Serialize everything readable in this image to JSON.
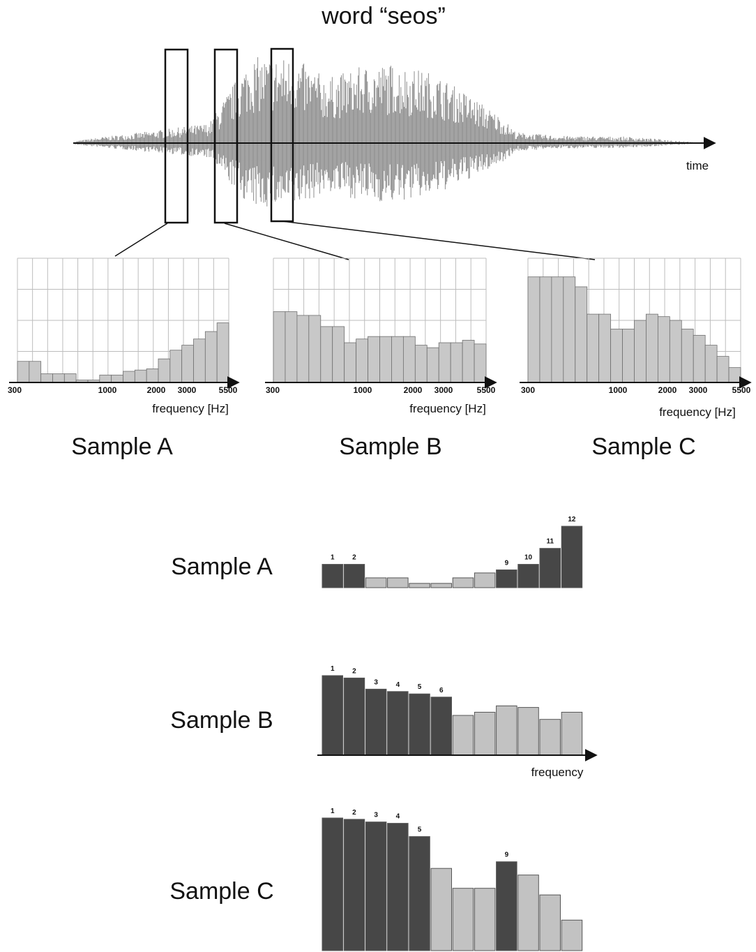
{
  "title": "word “seos”",
  "waveform": {
    "axis_label": "time"
  },
  "spectra": {
    "freq_ticks": [
      "300",
      "1000",
      "2000",
      "3000",
      "5500"
    ],
    "axis_label": "frequency [Hz]",
    "samples": [
      {
        "name": "Sample A",
        "levels": [
          0.17,
          0.17,
          0.07,
          0.07,
          0.07,
          0.02,
          0.02,
          0.06,
          0.06,
          0.09,
          0.1,
          0.11,
          0.19,
          0.26,
          0.3,
          0.35,
          0.41,
          0.48
        ]
      },
      {
        "name": "Sample B",
        "levels": [
          0.57,
          0.57,
          0.54,
          0.54,
          0.45,
          0.45,
          0.32,
          0.35,
          0.37,
          0.37,
          0.37,
          0.37,
          0.3,
          0.28,
          0.32,
          0.32,
          0.34,
          0.31
        ]
      },
      {
        "name": "Sample C",
        "levels": [
          0.85,
          0.85,
          0.85,
          0.85,
          0.77,
          0.55,
          0.55,
          0.43,
          0.43,
          0.5,
          0.55,
          0.53,
          0.5,
          0.43,
          0.38,
          0.3,
          0.21,
          0.12
        ]
      }
    ]
  },
  "bands": {
    "axis_label": "frequency",
    "samples": [
      {
        "name": "Sample A",
        "values": [
          0.38,
          0.38,
          0.16,
          0.16,
          0.07,
          0.07,
          0.16,
          0.24,
          0.29,
          0.38,
          0.64,
          1.0
        ],
        "highlighted": [
          1,
          2,
          9,
          10,
          11,
          12
        ]
      },
      {
        "name": "Sample B",
        "values": [
          1.0,
          0.97,
          0.83,
          0.8,
          0.77,
          0.73,
          0.5,
          0.54,
          0.62,
          0.6,
          0.45,
          0.54
        ],
        "highlighted": [
          1,
          2,
          3,
          4,
          5,
          6
        ]
      },
      {
        "name": "Sample C",
        "values": [
          1.0,
          0.99,
          0.97,
          0.96,
          0.86,
          0.62,
          0.47,
          0.47,
          0.67,
          0.57,
          0.42,
          0.23
        ],
        "highlighted": [
          1,
          2,
          3,
          4,
          5,
          9
        ]
      }
    ]
  },
  "colors": {
    "dark_bar": "#474747",
    "light_bar": "#c2c2c2",
    "spectrum_fill": "#c8c8c8",
    "wave": "#8c8c8c",
    "grid": "#bdbdbd"
  }
}
